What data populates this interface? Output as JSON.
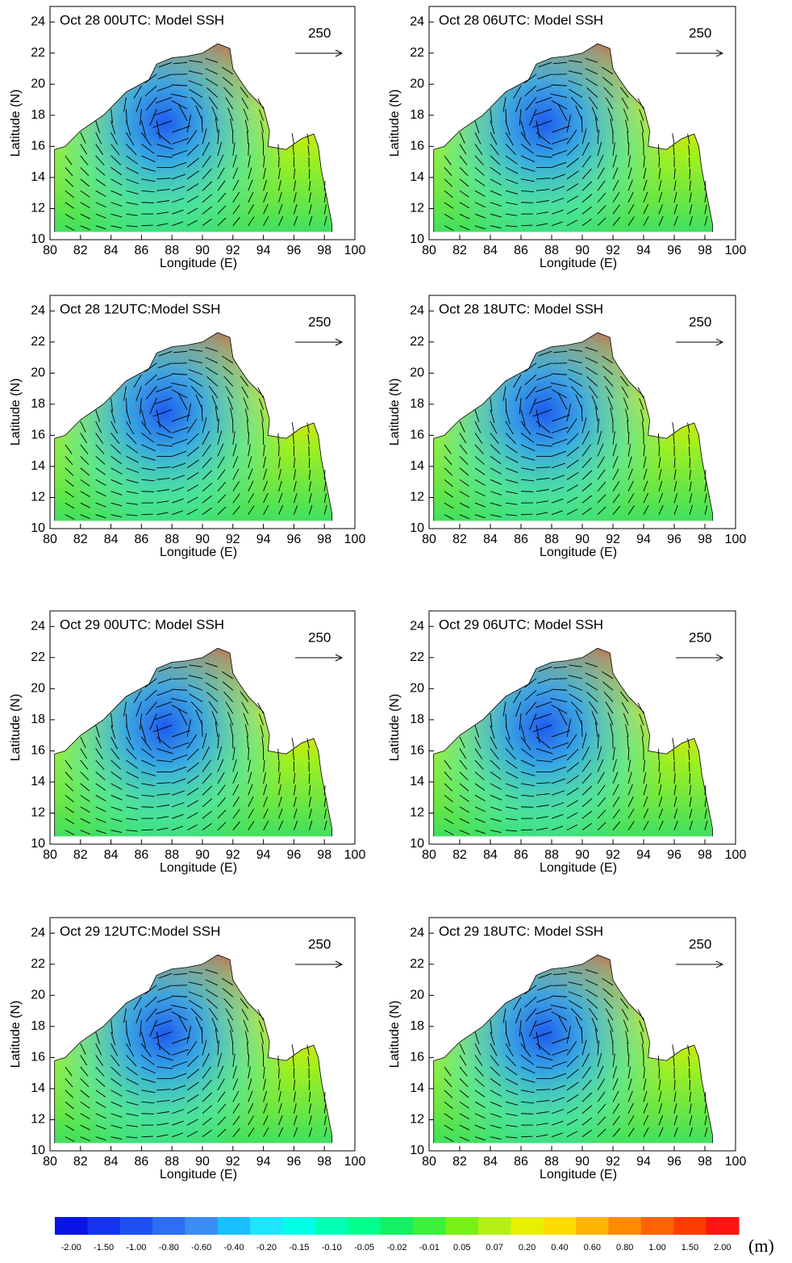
{
  "chart_data": [
    {
      "type": "vector-map",
      "title": "Oct 28 00UTC: Model SSH",
      "xlabel": "Longitude (E)",
      "ylabel": "Latitude (N)",
      "reference_vector_label": "250",
      "xlim": [
        80,
        100
      ],
      "ylim": [
        10,
        25
      ],
      "xticks": [
        80,
        82,
        84,
        86,
        88,
        90,
        92,
        94,
        96,
        98,
        100
      ],
      "yticks": [
        10,
        12,
        14,
        16,
        18,
        20,
        22,
        24
      ]
    },
    {
      "type": "vector-map",
      "title": "Oct 28 06UTC: Model SSH",
      "xlabel": "Longitude (E)",
      "ylabel": "Latitude (N)",
      "reference_vector_label": "250",
      "xlim": [
        80,
        100
      ],
      "ylim": [
        10,
        25
      ],
      "xticks": [
        80,
        82,
        84,
        86,
        88,
        90,
        92,
        94,
        96,
        98,
        100
      ],
      "yticks": [
        10,
        12,
        14,
        16,
        18,
        20,
        22,
        24
      ]
    },
    {
      "type": "vector-map",
      "title": "Oct 28 12UTC:Model SSH",
      "xlabel": "Longitude (E)",
      "ylabel": "Latitude (N)",
      "reference_vector_label": "250",
      "xlim": [
        80,
        100
      ],
      "ylim": [
        10,
        25
      ],
      "xticks": [
        80,
        82,
        84,
        86,
        88,
        90,
        92,
        94,
        96,
        98,
        100
      ],
      "yticks": [
        10,
        12,
        14,
        16,
        18,
        20,
        22,
        24
      ]
    },
    {
      "type": "vector-map",
      "title": "Oct 28 18UTC: Model SSH",
      "xlabel": "Longitude (E)",
      "ylabel": "Latitude (N)",
      "reference_vector_label": "250",
      "xlim": [
        80,
        100
      ],
      "ylim": [
        10,
        25
      ],
      "xticks": [
        80,
        82,
        84,
        86,
        88,
        90,
        92,
        94,
        96,
        98,
        100
      ],
      "yticks": [
        10,
        12,
        14,
        16,
        18,
        20,
        22,
        24
      ]
    },
    {
      "type": "vector-map",
      "title": "Oct 29 00UTC: Model SSH",
      "xlabel": "Longitude (E)",
      "ylabel": "Latitude (N)",
      "reference_vector_label": "250",
      "xlim": [
        80,
        100
      ],
      "ylim": [
        10,
        25
      ],
      "xticks": [
        80,
        82,
        84,
        86,
        88,
        90,
        92,
        94,
        96,
        98,
        100
      ],
      "yticks": [
        10,
        12,
        14,
        16,
        18,
        20,
        22,
        24
      ]
    },
    {
      "type": "vector-map",
      "title": "Oct 29 06UTC: Model SSH",
      "xlabel": "Longitude (E)",
      "ylabel": "Latitude (N)",
      "reference_vector_label": "250",
      "xlim": [
        80,
        100
      ],
      "ylim": [
        10,
        25
      ],
      "xticks": [
        80,
        82,
        84,
        86,
        88,
        90,
        92,
        94,
        96,
        98,
        100
      ],
      "yticks": [
        10,
        12,
        14,
        16,
        18,
        20,
        22,
        24
      ]
    },
    {
      "type": "vector-map",
      "title": "Oct 29 12UTC:Model SSH",
      "xlabel": "Longitude (E)",
      "ylabel": "Latitude (N)",
      "reference_vector_label": "250",
      "xlim": [
        80,
        100
      ],
      "ylim": [
        10,
        25
      ],
      "xticks": [
        80,
        82,
        84,
        86,
        88,
        90,
        92,
        94,
        96,
        98,
        100
      ],
      "yticks": [
        10,
        12,
        14,
        16,
        18,
        20,
        22,
        24
      ]
    },
    {
      "type": "vector-map",
      "title": "Oct 29 18UTC: Model SSH",
      "xlabel": "Longitude (E)",
      "ylabel": "Latitude (N)",
      "reference_vector_label": "250",
      "xlim": [
        80,
        100
      ],
      "ylim": [
        10,
        25
      ],
      "xticks": [
        80,
        82,
        84,
        86,
        88,
        90,
        92,
        94,
        96,
        98,
        100
      ],
      "yticks": [
        10,
        12,
        14,
        16,
        18,
        20,
        22,
        24
      ]
    },
    {
      "type": "colorbar",
      "unit": "(m)",
      "categories": [
        "-2.00",
        "-1.50",
        "-1.00",
        "-0.80",
        "-0.60",
        "-0.40",
        "-0.20",
        "-0.15",
        "-0.10",
        "-0.05",
        "-0.02",
        "-0.01",
        "0.05",
        "0.07",
        "0.20",
        "0.40",
        "0.60",
        "0.80",
        "1.00",
        "1.50",
        "2.00"
      ],
      "colors": [
        "#0a14e6",
        "#1432f0",
        "#1e50f5",
        "#2d6ef5",
        "#3c8cf5",
        "#19c0ff",
        "#1ee6ff",
        "#00ffe6",
        "#00ffb4",
        "#00ff8c",
        "#14f064",
        "#3cf03c",
        "#78f014",
        "#b4f014",
        "#e6f000",
        "#ffdc00",
        "#ffb400",
        "#ff8c00",
        "#ff6400",
        "#ff3c00",
        "#ff1414"
      ]
    }
  ]
}
